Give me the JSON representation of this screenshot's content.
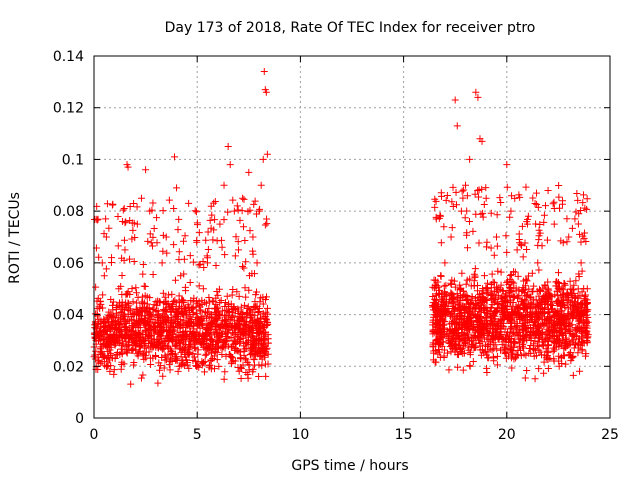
{
  "chart_data": {
    "type": "scatter",
    "title": "Day 173 of 2018, Rate Of TEC Index for receiver ptro",
    "xlabel": "GPS time / hours",
    "ylabel": "ROTI / TECUs",
    "xlim": [
      0,
      25
    ],
    "ylim": [
      0,
      0.14
    ],
    "xticks": [
      0,
      5,
      10,
      15,
      20,
      25
    ],
    "xtick_labels": [
      "0",
      "5",
      "10",
      "15",
      "20",
      "25"
    ],
    "yticks": [
      0,
      0.02,
      0.04,
      0.06,
      0.08,
      0.1,
      0.12,
      0.14
    ],
    "ytick_labels": [
      "0",
      "0.02",
      "0.04",
      "0.06",
      "0.08",
      "0.1",
      "0.12",
      "0.14"
    ],
    "grid": true,
    "marker": "+",
    "colors": {
      "series": "#ff0000",
      "grid": "#a0a0a0",
      "axes": "#000000",
      "background": "#ffffff"
    },
    "series": [
      {
        "name": "ROTI",
        "points": [
          [
            0.1,
            0.03
          ],
          [
            0.3,
            0.045
          ],
          [
            0.4,
            0.06
          ],
          [
            0.5,
            0.055
          ],
          [
            0.6,
            0.07
          ],
          [
            0.8,
            0.025
          ],
          [
            1.0,
            0.035
          ],
          [
            1.2,
            0.05
          ],
          [
            1.5,
            0.065
          ],
          [
            1.6,
            0.098
          ],
          [
            1.65,
            0.097
          ],
          [
            1.9,
            0.04
          ],
          [
            2.1,
            0.075
          ],
          [
            2.3,
            0.085
          ],
          [
            2.5,
            0.096
          ],
          [
            2.7,
            0.08
          ],
          [
            3.0,
            0.045
          ],
          [
            3.3,
            0.06
          ],
          [
            3.5,
            0.07
          ],
          [
            3.9,
            0.101
          ],
          [
            4.0,
            0.089
          ],
          [
            4.2,
            0.055
          ],
          [
            4.5,
            0.04
          ],
          [
            4.8,
            0.03
          ],
          [
            5.0,
            0.02
          ],
          [
            5.3,
            0.05
          ],
          [
            5.5,
            0.06
          ],
          [
            5.8,
            0.045
          ],
          [
            6.1,
            0.075
          ],
          [
            6.3,
            0.09
          ],
          [
            6.5,
            0.105
          ],
          [
            6.6,
            0.098
          ],
          [
            6.8,
            0.08
          ],
          [
            7.0,
            0.065
          ],
          [
            7.2,
            0.085
          ],
          [
            7.5,
            0.095
          ],
          [
            7.7,
            0.07
          ],
          [
            7.9,
            0.06
          ],
          [
            8.0,
            0.08
          ],
          [
            8.1,
            0.09
          ],
          [
            8.2,
            0.1
          ],
          [
            8.25,
            0.134
          ],
          [
            8.3,
            0.127
          ],
          [
            8.35,
            0.126
          ],
          [
            8.4,
            0.102
          ],
          [
            16.5,
            0.04
          ],
          [
            16.8,
            0.055
          ],
          [
            17.0,
            0.06
          ],
          [
            17.3,
            0.07
          ],
          [
            17.5,
            0.123
          ],
          [
            17.6,
            0.113
          ],
          [
            17.8,
            0.08
          ],
          [
            18.0,
            0.09
          ],
          [
            18.2,
            0.1
          ],
          [
            18.5,
            0.126
          ],
          [
            18.6,
            0.124
          ],
          [
            18.7,
            0.108
          ],
          [
            18.8,
            0.107
          ],
          [
            19.0,
            0.085
          ],
          [
            19.5,
            0.07
          ],
          [
            20.0,
            0.098
          ],
          [
            20.2,
            0.08
          ],
          [
            20.5,
            0.065
          ],
          [
            21.0,
            0.075
          ],
          [
            21.5,
            0.06
          ],
          [
            22.0,
            0.088
          ],
          [
            22.3,
            0.075
          ],
          [
            22.7,
            0.084
          ],
          [
            23.0,
            0.07
          ],
          [
            23.3,
            0.077
          ],
          [
            23.6,
            0.06
          ],
          [
            23.9,
            0.05
          ]
        ]
      }
    ],
    "dense_bands": [
      {
        "x_start": 0.0,
        "x_end": 8.45,
        "low": 0.012,
        "high": 0.055,
        "count": 1600,
        "spike_rate": 0.07,
        "spike_max": 0.085
      },
      {
        "x_start": 16.4,
        "x_end": 23.95,
        "low": 0.014,
        "high": 0.062,
        "count": 1700,
        "spike_rate": 0.07,
        "spike_max": 0.09
      }
    ]
  }
}
